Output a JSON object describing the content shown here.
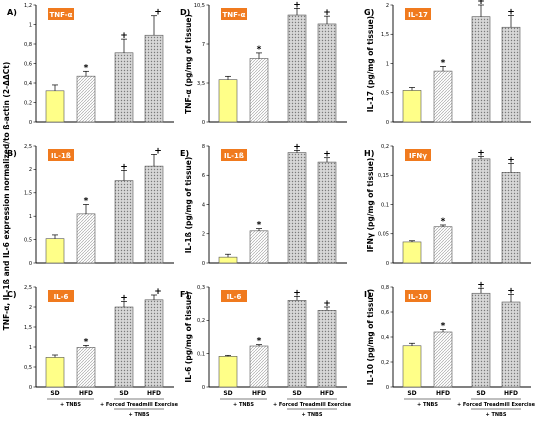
{
  "chart_data": [
    {
      "id": "A",
      "type": "bar",
      "panel_label": "A)",
      "tag": "TNF-α",
      "categories": [
        "SD",
        "HFD",
        "SD",
        "HFD"
      ],
      "values": [
        0.32,
        0.47,
        0.71,
        0.89
      ],
      "errors": [
        0.06,
        0.05,
        0.14,
        0.2
      ],
      "ylim": [
        0,
        1.2
      ],
      "yticks": [
        0,
        0.2,
        0.4,
        0.6,
        0.8,
        1.0,
        1.2
      ],
      "yticklabels": [
        "0",
        "0,2",
        "0,4",
        "0,6",
        "0,8",
        "1",
        "1,2"
      ],
      "marks": [
        "",
        "*",
        "+",
        "+"
      ]
    },
    {
      "id": "B",
      "type": "bar",
      "panel_label": "B)",
      "tag": "IL-1ß",
      "categories": [
        "SD",
        "HFD",
        "SD",
        "HFD"
      ],
      "values": [
        0.52,
        1.05,
        1.76,
        2.07
      ],
      "errors": [
        0.08,
        0.2,
        0.22,
        0.25
      ],
      "ylim": [
        0,
        2.5
      ],
      "yticks": [
        0,
        0.5,
        1.0,
        1.5,
        2.0,
        2.5
      ],
      "yticklabels": [
        "0",
        "0,5",
        "1",
        "1,5",
        "2",
        "2,5"
      ],
      "marks": [
        "",
        "*",
        "+",
        "+"
      ]
    },
    {
      "id": "C",
      "type": "bar",
      "panel_label": "C)",
      "tag": "IL-6",
      "categories": [
        "SD",
        "HFD",
        "SD",
        "HFD"
      ],
      "values": [
        0.74,
        0.99,
        2.0,
        2.18
      ],
      "errors": [
        0.06,
        0.05,
        0.14,
        0.12
      ],
      "ylim": [
        0,
        2.5
      ],
      "yticks": [
        0,
        0.5,
        1.0,
        1.5,
        2.0,
        2.5
      ],
      "yticklabels": [
        "0",
        "0,5",
        "1",
        "1,5",
        "2",
        "2,5"
      ],
      "marks": [
        "",
        "*",
        "+",
        "+"
      ],
      "show_xaxis": true
    },
    {
      "id": "D",
      "type": "bar",
      "panel_label": "D)",
      "tag": "TNF-α",
      "categories": [
        "SD",
        "HFD",
        "SD",
        "HFD"
      ],
      "values": [
        3.8,
        5.7,
        9.6,
        8.8
      ],
      "errors": [
        0.3,
        0.5,
        0.6,
        0.7
      ],
      "ylim": [
        0,
        10.5
      ],
      "yticks": [
        0,
        3.5,
        7,
        10.5
      ],
      "yticklabels": [
        "0",
        "3,5",
        "7",
        "10,5"
      ],
      "marks": [
        "",
        "*",
        "+",
        "+"
      ]
    },
    {
      "id": "E",
      "type": "bar",
      "panel_label": "E)",
      "tag": "IL-1ß",
      "categories": [
        "SD",
        "HFD",
        "SD",
        "HFD"
      ],
      "values": [
        0.4,
        2.2,
        7.55,
        6.9
      ],
      "errors": [
        0.2,
        0.15,
        0.15,
        0.3
      ],
      "ylim": [
        0,
        8
      ],
      "yticks": [
        0,
        2,
        4,
        6,
        8
      ],
      "yticklabels": [
        "0",
        "2",
        "4",
        "6",
        "8"
      ],
      "marks": [
        "",
        "*",
        "+",
        "+"
      ]
    },
    {
      "id": "F",
      "type": "bar",
      "panel_label": "F)",
      "tag": "IL-6",
      "categories": [
        "SD",
        "HFD",
        "SD",
        "HFD"
      ],
      "values": [
        0.092,
        0.123,
        0.26,
        0.23
      ],
      "errors": [
        0.003,
        0.004,
        0.012,
        0.01
      ],
      "ylim": [
        0,
        0.3
      ],
      "yticks": [
        0,
        0.1,
        0.2,
        0.3
      ],
      "yticklabels": [
        "0",
        "0,1",
        "0,2",
        "0,3"
      ],
      "marks": [
        "",
        "*",
        "+",
        "+"
      ],
      "show_xaxis": true
    },
    {
      "id": "G",
      "type": "bar",
      "panel_label": "G)",
      "tag": "IL-17",
      "categories": [
        "SD",
        "HFD",
        "SD",
        "HFD"
      ],
      "values": [
        0.54,
        0.87,
        1.8,
        1.62
      ],
      "errors": [
        0.05,
        0.08,
        0.2,
        0.2
      ],
      "ylim": [
        0,
        2
      ],
      "yticks": [
        0,
        0.5,
        1.0,
        1.5,
        2.0
      ],
      "yticklabels": [
        "0",
        "0,5",
        "1",
        "1,5",
        "2"
      ],
      "marks": [
        "",
        "*",
        "+",
        "+"
      ]
    },
    {
      "id": "H",
      "type": "bar",
      "panel_label": "H)",
      "tag": "IFNγ",
      "categories": [
        "SD",
        "HFD",
        "SD",
        "HFD"
      ],
      "values": [
        0.036,
        0.062,
        0.178,
        0.155
      ],
      "errors": [
        0.002,
        0.003,
        0.004,
        0.015
      ],
      "ylim": [
        0,
        0.2
      ],
      "yticks": [
        0,
        0.05,
        0.1,
        0.15,
        0.2
      ],
      "yticklabels": [
        "0",
        "0,05",
        "0,1",
        "0,15",
        "0,2"
      ],
      "marks": [
        "",
        "*",
        "+",
        "+"
      ]
    },
    {
      "id": "I",
      "type": "bar",
      "panel_label": "I)",
      "tag": "IL-10",
      "categories": [
        "SD",
        "HFD",
        "SD",
        "HFD"
      ],
      "values": [
        0.33,
        0.44,
        0.75,
        0.68
      ],
      "errors": [
        0.02,
        0.02,
        0.04,
        0.06
      ],
      "ylim": [
        0,
        0.8
      ],
      "yticks": [
        0,
        0.2,
        0.4,
        0.6,
        0.8
      ],
      "yticklabels": [
        "0",
        "0,2",
        "0,4",
        "0,6",
        "0,8"
      ],
      "marks": [
        "",
        "*",
        "+",
        "+"
      ],
      "show_xaxis": true
    }
  ],
  "column_ylabels": {
    "left": "TNF-α, IL-1ß and IL-6 expression normalized/to ß-actin (2-ΔΔCt)",
    "D": "TNF-α (pg/mg of tissue)",
    "E": "IL-1ß (pg/mg of tissue)",
    "F": "IL-6 (pg/mg of tissue)",
    "G": "IL-17 (pg/mg of tissue)",
    "H": "IFNγ (pg/mg of tissue)",
    "I": "IL-10 (pg/mg of tissue)"
  },
  "group_labels": {
    "sd_hfd_group": "+ TNBS",
    "exercise_group": "+ Forced Treadmill Exercise",
    "exercise_sub": "+ TNBS"
  },
  "colors": {
    "sd_fill": "#ffff88",
    "hfd_fill": "#ffffff",
    "exercise_fill": "#cfcfcf",
    "tag_bg": "#f07a1e",
    "axis": "#000000"
  }
}
